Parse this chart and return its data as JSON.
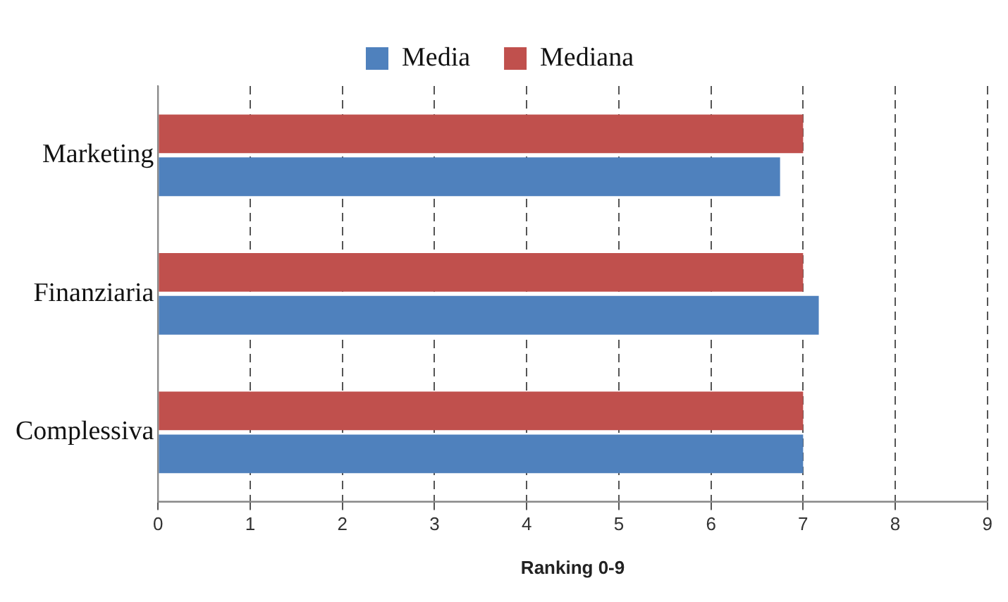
{
  "chart_data": {
    "type": "bar",
    "orientation": "horizontal",
    "categories": [
      "Marketing",
      "Finanziaria",
      "Complessiva"
    ],
    "series": [
      {
        "name": "Media",
        "color": "#4f81bd",
        "values": [
          6.75,
          7.17,
          7
        ]
      },
      {
        "name": "Mediana",
        "color": "#c0504d",
        "values": [
          7,
          7,
          7
        ]
      }
    ],
    "xlabel": "Ranking 0-9",
    "xlim": [
      0,
      9
    ],
    "xticks": [
      0,
      1,
      2,
      3,
      4,
      5,
      6,
      7,
      8,
      9
    ],
    "grid": "x",
    "legend": "top"
  }
}
